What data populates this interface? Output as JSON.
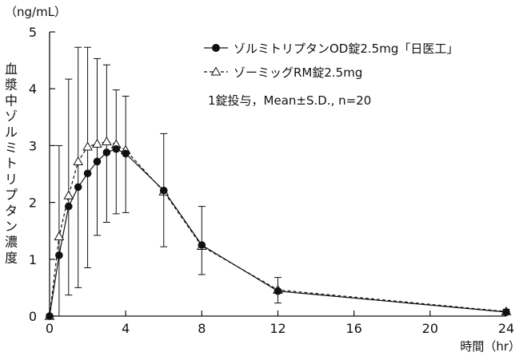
{
  "chart_data": {
    "type": "line",
    "title": "",
    "ylabel": "血漿中ゾルミトリプタン濃度",
    "yunit": "（ng/mL）",
    "xlabel": "時間（hr）",
    "xlim": [
      0,
      24
    ],
    "ylim": [
      0,
      5
    ],
    "xticks": [
      0,
      4,
      8,
      12,
      16,
      20,
      24
    ],
    "yticks": [
      0,
      1,
      2,
      3,
      4,
      5
    ],
    "grid": false,
    "legend_position": "top-right",
    "note": "1錠投与，Mean±S.D., n=20",
    "series": [
      {
        "name": "ゾルミトリプタンOD錠2.5mg「日医工」",
        "marker": "filled-circle",
        "line": "solid",
        "x": [
          0,
          0.5,
          1,
          1.5,
          2,
          2.5,
          3,
          3.5,
          4,
          6,
          8,
          12,
          24
        ],
        "y": [
          0.0,
          1.07,
          1.93,
          2.27,
          2.51,
          2.72,
          2.88,
          2.94,
          2.86,
          2.21,
          1.25,
          0.44,
          0.07
        ],
        "err_low": [
          0.0,
          null,
          0.37,
          0.5,
          0.85,
          1.42,
          1.65,
          1.8,
          1.82,
          1.22,
          0.73,
          0.23,
          0.04
        ],
        "err_high": [
          0.0,
          null,
          4.17,
          4.73,
          4.73,
          4.53,
          4.42,
          3.98,
          3.87,
          3.21,
          1.93,
          0.68,
          0.12
        ]
      },
      {
        "name": "ゾーミッグRM錠2.5mg",
        "marker": "open-triangle",
        "line": "dashed",
        "x": [
          0,
          0.5,
          1,
          1.5,
          2,
          2.5,
          3,
          3.5,
          4,
          6,
          8,
          12,
          24
        ],
        "y": [
          0.0,
          1.4,
          2.12,
          2.72,
          2.98,
          3.03,
          3.07,
          3.02,
          2.92,
          2.19,
          1.23,
          0.46,
          0.08
        ],
        "err_low": [
          0.0,
          0.0,
          null,
          null,
          null,
          null,
          null,
          null,
          null,
          null,
          null,
          null,
          null
        ],
        "err_high": [
          0.0,
          3.0,
          null,
          null,
          null,
          null,
          null,
          null,
          null,
          null,
          null,
          null,
          null
        ]
      }
    ]
  }
}
